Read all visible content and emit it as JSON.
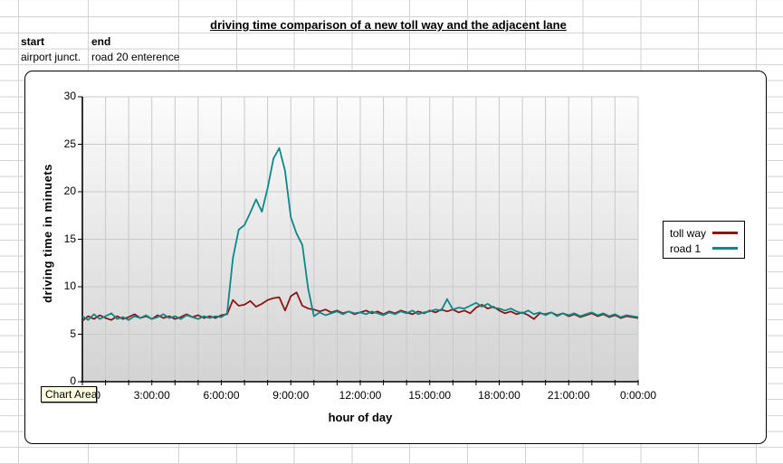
{
  "sheet": {
    "title": "driving time comparison of a new toll way and the adjacent lane",
    "cells": {
      "start_header": "start",
      "end_header": "end",
      "start_value": "airport junct.",
      "end_value": "road 20 enterence"
    }
  },
  "tooltip": {
    "label": "Chart Area"
  },
  "colors": {
    "sheet_grid_line": "#D2D2D2",
    "plot_grid_line": "#C9C9C9",
    "axis_line": "#000000",
    "plot_gradient_top": "#FCFCFC",
    "plot_gradient_bottom": "#D3D3D3",
    "tooltip_bg": "#FFFFE1",
    "toll_way": "#8B1515",
    "road_1": "#0E8787"
  },
  "chart_data": {
    "type": "line",
    "title": "",
    "xlabel": "hour of day",
    "ylabel": "driving time in minuets",
    "legend_position": "right",
    "xlim_hours": [
      0,
      24
    ],
    "ylim": [
      0,
      30
    ],
    "x_sample_interval_hours": 0.25,
    "xticks_hours": [
      0,
      3,
      6,
      9,
      12,
      15,
      18,
      21,
      24
    ],
    "xtick_labels": [
      "0:00:00",
      "3:00:00",
      "6:00:00",
      "9:00:00",
      "12:00:00",
      "15:00:00",
      "18:00:00",
      "21:00:00",
      "0:00:00"
    ],
    "yticks": [
      0,
      5,
      10,
      15,
      20,
      25,
      30
    ],
    "grid": {
      "vertical_every_hours": 1,
      "horizontal_every_units": 5
    },
    "series": [
      {
        "name": "toll way",
        "color": "#8B1515",
        "values": [
          6.4,
          6.9,
          6.6,
          7.0,
          6.7,
          6.5,
          6.9,
          6.6,
          6.8,
          7.1,
          6.7,
          6.9,
          6.6,
          7.0,
          6.7,
          6.9,
          6.6,
          6.8,
          7.1,
          6.8,
          7.0,
          6.7,
          6.9,
          6.7,
          7.0,
          7.1,
          8.6,
          8.0,
          8.1,
          8.5,
          7.9,
          8.2,
          8.6,
          8.8,
          8.9,
          7.5,
          9.0,
          9.4,
          8.0,
          7.7,
          7.6,
          7.4,
          7.6,
          7.3,
          7.5,
          7.2,
          7.4,
          7.1,
          7.3,
          7.5,
          7.2,
          7.4,
          7.1,
          7.4,
          7.2,
          7.5,
          7.3,
          7.1,
          7.4,
          7.2,
          7.5,
          7.3,
          7.6,
          7.4,
          7.6,
          7.3,
          7.5,
          7.2,
          7.8,
          8.1,
          7.7,
          7.9,
          7.5,
          7.2,
          7.4,
          7.1,
          7.3,
          7.0,
          6.6,
          7.2,
          7.1,
          7.3,
          7.0,
          7.2,
          6.9,
          7.1,
          6.8,
          7.0,
          7.2,
          6.9,
          7.1,
          6.8,
          7.0,
          6.7,
          6.9,
          6.8,
          6.7
        ]
      },
      {
        "name": "road 1",
        "color": "#0E8787",
        "values": [
          6.9,
          6.5,
          7.1,
          6.6,
          6.9,
          7.2,
          6.6,
          6.8,
          6.5,
          6.9,
          6.7,
          7.0,
          6.6,
          6.8,
          7.1,
          6.7,
          6.9,
          6.6,
          7.0,
          6.8,
          6.6,
          6.9,
          6.7,
          6.9,
          6.8,
          7.2,
          13.0,
          16.0,
          16.5,
          17.8,
          19.2,
          17.9,
          20.4,
          23.5,
          24.6,
          22.2,
          17.3,
          15.6,
          14.4,
          9.8,
          6.9,
          7.3,
          7.0,
          7.2,
          7.4,
          7.1,
          7.4,
          7.2,
          7.3,
          7.1,
          7.4,
          7.2,
          7.0,
          7.3,
          7.1,
          7.4,
          7.2,
          7.5,
          7.1,
          7.3,
          7.4,
          7.6,
          7.5,
          8.7,
          7.6,
          7.8,
          7.7,
          8.0,
          8.3,
          7.9,
          8.2,
          7.8,
          7.7,
          7.5,
          7.7,
          7.4,
          7.2,
          7.5,
          7.1,
          7.3,
          7.0,
          7.3,
          6.9,
          7.2,
          7.0,
          7.2,
          6.9,
          7.1,
          7.3,
          7.0,
          7.2,
          6.9,
          7.1,
          6.8,
          7.0,
          6.9,
          6.8
        ]
      }
    ]
  }
}
